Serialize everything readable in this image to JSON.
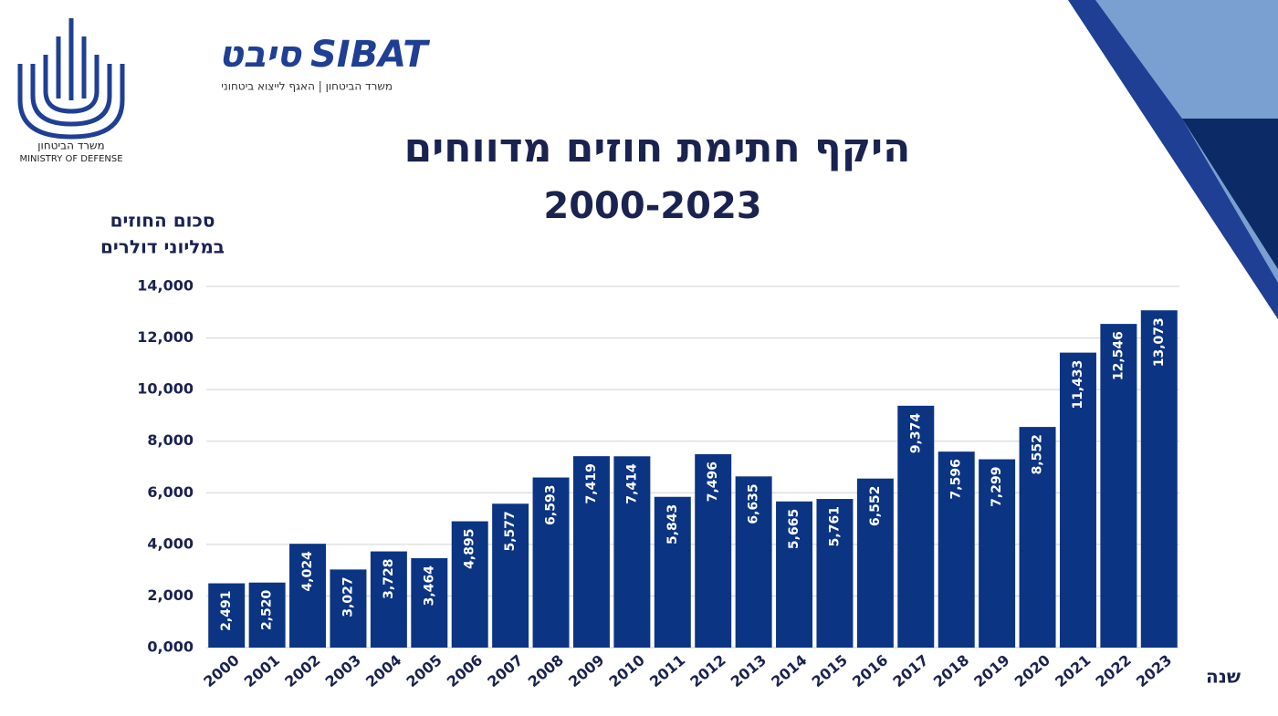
{
  "logo": {
    "ministry_he": "משרד הביטחון",
    "ministry_en": "MINISTRY OF DEFENSE",
    "sibat_he": "סיבט",
    "sibat_en": "SIBAT",
    "sibat_sub": "משרד הביטחון | האגף לייצוא ביטחוני"
  },
  "chart_data": {
    "type": "bar",
    "title": "היקף חתימת חוזים מדווחים",
    "subtitle": "2000-2023",
    "y_label": [
      "סכום החוזים",
      "במליוני דולרים"
    ],
    "x_label": "שנה",
    "color": "#0b3483",
    "grid": true,
    "categories": [
      "2000",
      "2001",
      "2002",
      "2003",
      "2004",
      "2005",
      "2006",
      "2007",
      "2008",
      "2009",
      "2010",
      "2011",
      "2012",
      "2013",
      "2014",
      "2015",
      "2016",
      "2017",
      "2018",
      "2019",
      "2020",
      "2021",
      "2022",
      "2023"
    ],
    "values": [
      2491,
      2520,
      4024,
      3027,
      3728,
      3464,
      4895,
      5577,
      6593,
      7419,
      7414,
      5843,
      7496,
      6635,
      5665,
      5761,
      6552,
      9374,
      7596,
      7299,
      8552,
      11433,
      12546,
      13073
    ],
    "value_labels": [
      "2,491",
      "2,520",
      "4,024",
      "3,027",
      "3,728",
      "3,464",
      "4,895",
      "5,577",
      "6,593",
      "7,419",
      "7,414",
      "5,843",
      "7,496",
      "6,635",
      "5,665",
      "5,761",
      "6,552",
      "9,374",
      "7,596",
      "7,299",
      "8,552",
      "11,433",
      "12,546",
      "13,073"
    ],
    "ylim": [
      0,
      14000
    ],
    "yticks": [
      {
        "value": 0,
        "label": "0,000"
      },
      {
        "value": 2000,
        "label": "2,000"
      },
      {
        "value": 4000,
        "label": "4,000"
      },
      {
        "value": 6000,
        "label": "6,000"
      },
      {
        "value": 8000,
        "label": "8,000"
      },
      {
        "value": 10000,
        "label": "10,000"
      },
      {
        "value": 12000,
        "label": "12,000"
      },
      {
        "value": 14000,
        "label": "14,000"
      }
    ]
  }
}
